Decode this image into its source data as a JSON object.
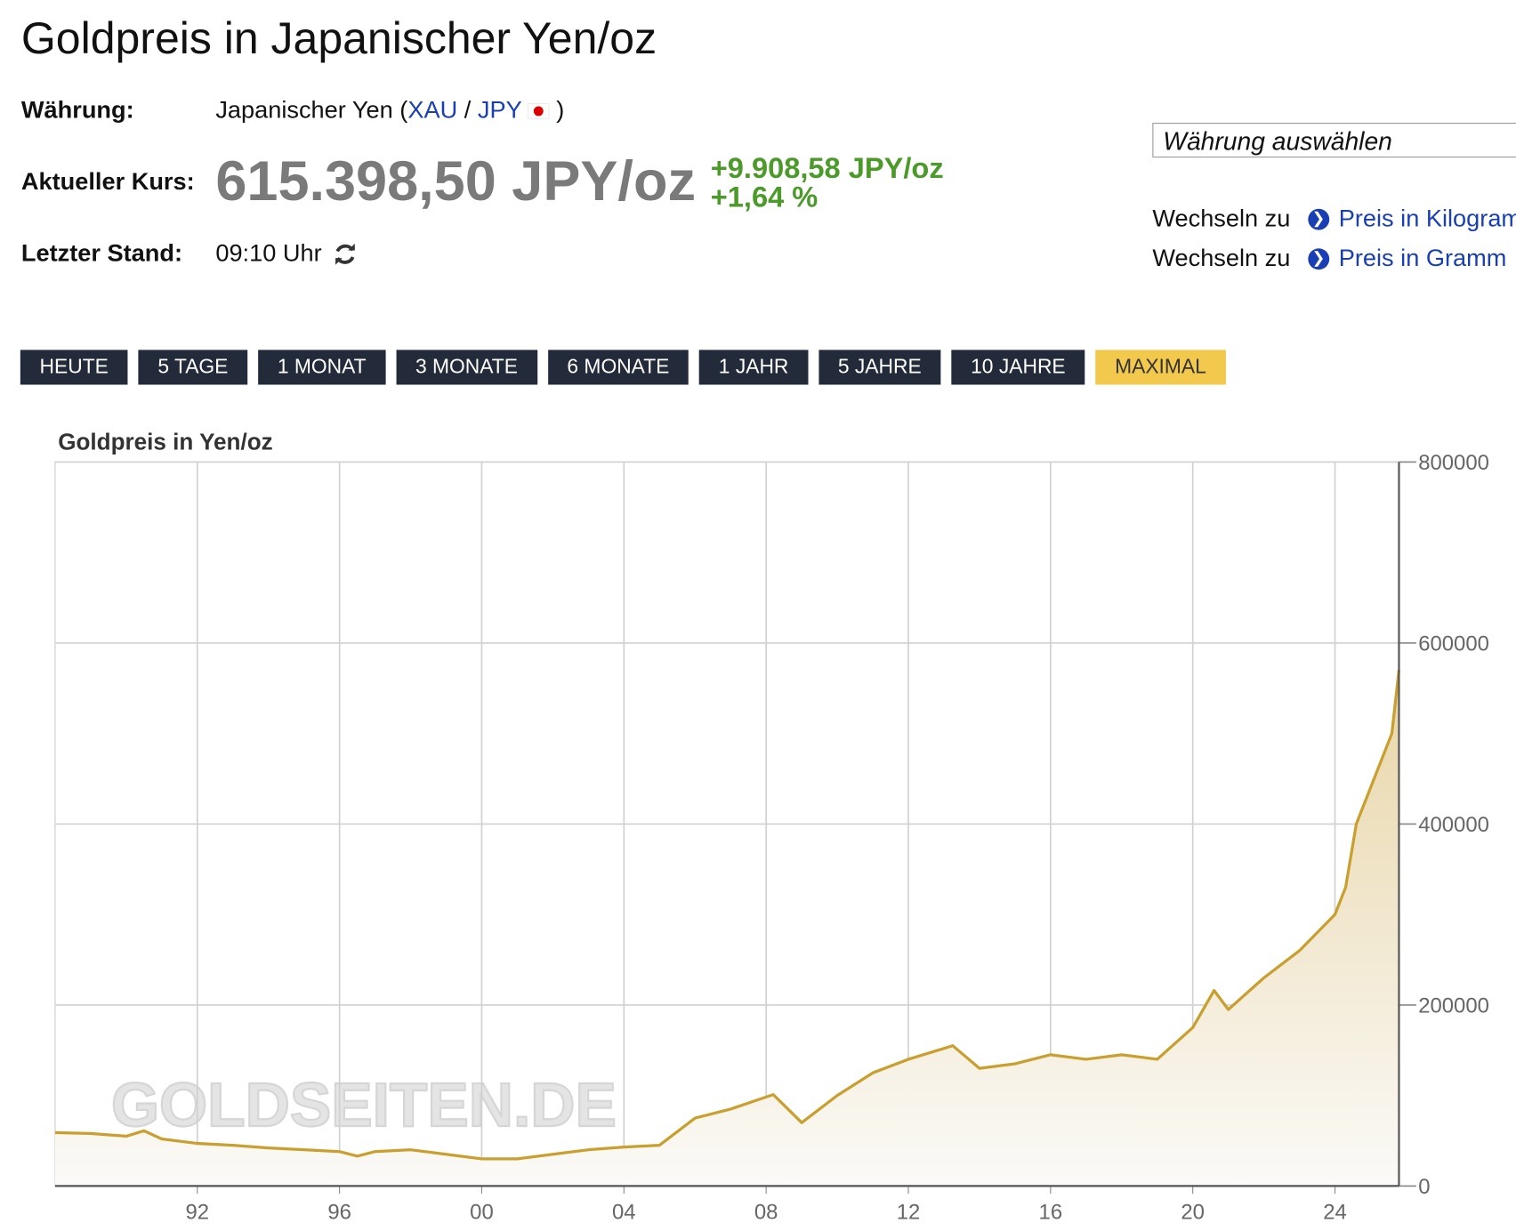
{
  "header": {
    "title": "Goldpreis in Japanischer Yen/oz",
    "currency_label": "Währung:",
    "currency_name": "Japanischer Yen (",
    "currency_base": "XAU",
    "currency_sep": "/",
    "currency_quote": "JPY",
    "currency_close": ")",
    "price_label": "Aktueller Kurs:",
    "price": "615.398,50 JPY/oz",
    "change_abs": "+9.908,58 JPY/oz",
    "change_pct": "+1,64 %",
    "updated_label": "Letzter Stand:",
    "updated": "09:10 Uhr"
  },
  "sidebar": {
    "select": "Währung auswählen",
    "links": [
      {
        "prefix": "Wechseln zu",
        "label": "Preis in Kilogramm"
      },
      {
        "prefix": "Wechseln zu",
        "label": "Preis in Gramm"
      }
    ]
  },
  "ranges": {
    "buttons": [
      "HEUTE",
      "5 TAGE",
      "1 MONAT",
      "3 MONATE",
      "6 MONATE",
      "1 JAHR",
      "5 JAHRE",
      "10 JAHRE",
      "MAXIMAL"
    ],
    "active": "MAXIMAL"
  },
  "chart_data": {
    "type": "line",
    "title": "Goldpreis in Yen/oz",
    "watermark": "GOLDSEITEN.DE",
    "x": [
      1988,
      1989,
      1990,
      1990.5,
      1991,
      1992,
      1993,
      1994,
      1995,
      1996,
      1996.5,
      1997,
      1998,
      1999,
      2000,
      2001,
      2002,
      2003,
      2004,
      2005,
      2006,
      2007,
      2008.2,
      2009,
      2010,
      2011,
      2012,
      2013.25,
      2014,
      2015,
      2016,
      2017,
      2018,
      2019,
      2020,
      2020.6,
      2021,
      2022,
      2023,
      2024,
      2024.3,
      2024.6,
      2025,
      2025.3,
      2025.6,
      2025.8
    ],
    "series": [
      {
        "name": "Goldpreis",
        "color": "#c9a030",
        "values": [
          59000,
          58000,
          55000,
          61000,
          52000,
          47000,
          45000,
          42000,
          40000,
          38000,
          33000,
          38000,
          40000,
          35000,
          30000,
          30000,
          35000,
          40000,
          43000,
          45000,
          75000,
          85000,
          101000,
          70000,
          100000,
          125000,
          140000,
          155000,
          130000,
          135000,
          145000,
          140000,
          145000,
          140000,
          175000,
          216000,
          195000,
          230000,
          260000,
          300000,
          330000,
          400000,
          440000,
          470000,
          500000,
          570000
        ]
      }
    ],
    "xlim": [
      1988,
      2025.8
    ],
    "ylim": [
      0,
      800000
    ],
    "xticks": [
      {
        "value": 1992,
        "label": "92"
      },
      {
        "value": 1996,
        "label": "96"
      },
      {
        "value": 2000,
        "label": "00"
      },
      {
        "value": 2004,
        "label": "04"
      },
      {
        "value": 2008,
        "label": "08"
      },
      {
        "value": 2012,
        "label": "12"
      },
      {
        "value": 2016,
        "label": "16"
      },
      {
        "value": 2020,
        "label": "20"
      },
      {
        "value": 2024,
        "label": "24"
      }
    ],
    "yticks": [
      0,
      200000,
      400000,
      600000,
      800000
    ],
    "grid": true
  }
}
